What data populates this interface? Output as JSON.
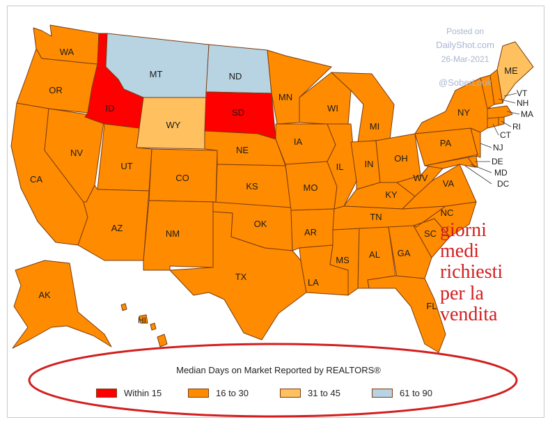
{
  "colors": {
    "within15": "#ff0000",
    "d16to30": "#ff8c00",
    "d31to45": "#ffc060",
    "d61to90": "#b8d4e3",
    "annotation": "#d21e1e"
  },
  "watermark": {
    "posted_on": "Posted on",
    "site": "DailyShot.com",
    "date": "26-Mar-2021",
    "handle": "@SoberLook"
  },
  "legend": {
    "title": "Median Days on Market Reported by REALTORS®",
    "items": [
      {
        "label": "Within 15",
        "color": "#ff0000"
      },
      {
        "label": "16 to 30",
        "color": "#ff8c00"
      },
      {
        "label": "31 to 45",
        "color": "#ffc060"
      },
      {
        "label": "61 to 90",
        "color": "#b8d4e3"
      }
    ]
  },
  "annotation": {
    "lines": [
      "giorni",
      "medi",
      "richiesti",
      "per la",
      "vendita"
    ]
  },
  "states": {
    "WA": {
      "label": "WA",
      "category": "16 to 30"
    },
    "OR": {
      "label": "OR",
      "category": "16 to 30"
    },
    "CA": {
      "label": "CA",
      "category": "16 to 30"
    },
    "NV": {
      "label": "NV",
      "category": "16 to 30"
    },
    "ID": {
      "label": "ID",
      "category": "Within 15"
    },
    "MT": {
      "label": "MT",
      "category": "61 to 90"
    },
    "WY": {
      "label": "WY",
      "category": "31 to 45"
    },
    "UT": {
      "label": "UT",
      "category": "16 to 30"
    },
    "AZ": {
      "label": "AZ",
      "category": "16 to 30"
    },
    "CO": {
      "label": "CO",
      "category": "16 to 30"
    },
    "NM": {
      "label": "NM",
      "category": "16 to 30"
    },
    "ND": {
      "label": "ND",
      "category": "61 to 90"
    },
    "SD": {
      "label": "SD",
      "category": "Within 15"
    },
    "NE": {
      "label": "NE",
      "category": "16 to 30"
    },
    "KS": {
      "label": "KS",
      "category": "16 to 30"
    },
    "OK": {
      "label": "OK",
      "category": "16 to 30"
    },
    "TX": {
      "label": "TX",
      "category": "16 to 30"
    },
    "MN": {
      "label": "MN",
      "category": "16 to 30"
    },
    "IA": {
      "label": "IA",
      "category": "16 to 30"
    },
    "MO": {
      "label": "MO",
      "category": "16 to 30"
    },
    "AR": {
      "label": "AR",
      "category": "16 to 30"
    },
    "LA": {
      "label": "LA",
      "category": "16 to 30"
    },
    "WI": {
      "label": "WI",
      "category": "16 to 30"
    },
    "IL": {
      "label": "IL",
      "category": "16 to 30"
    },
    "MS": {
      "label": "MS",
      "category": "16 to 30"
    },
    "MI": {
      "label": "MI",
      "category": "16 to 30"
    },
    "IN": {
      "label": "IN",
      "category": "16 to 30"
    },
    "KY": {
      "label": "KY",
      "category": "16 to 30"
    },
    "TN": {
      "label": "TN",
      "category": "16 to 30"
    },
    "AL": {
      "label": "AL",
      "category": "16 to 30"
    },
    "GA": {
      "label": "GA",
      "category": "16 to 30"
    },
    "FL": {
      "label": "FL",
      "category": "16 to 30"
    },
    "OH": {
      "label": "OH",
      "category": "16 to 30"
    },
    "WV": {
      "label": "WV",
      "category": "16 to 30"
    },
    "VA": {
      "label": "VA",
      "category": "16 to 30"
    },
    "NC": {
      "label": "NC",
      "category": "16 to 30"
    },
    "SC": {
      "label": "SC",
      "category": "16 to 30"
    },
    "PA": {
      "label": "PA",
      "category": "16 to 30"
    },
    "NY": {
      "label": "NY",
      "category": "16 to 30"
    },
    "ME": {
      "label": "ME",
      "category": "31 to 45"
    },
    "VT": {
      "label": "VT",
      "category": "16 to 30"
    },
    "NH": {
      "label": "NH",
      "category": "16 to 30"
    },
    "MA": {
      "label": "MA",
      "category": "16 to 30"
    },
    "RI": {
      "label": "RI",
      "category": "16 to 30"
    },
    "CT": {
      "label": "CT",
      "category": "16 to 30"
    },
    "NJ": {
      "label": "NJ",
      "category": "16 to 30"
    },
    "DE": {
      "label": "DE",
      "category": "16 to 30"
    },
    "MD": {
      "label": "MD",
      "category": "16 to 30"
    },
    "DC": {
      "label": "DC",
      "category": "16 to 30"
    },
    "AK": {
      "label": "AK",
      "category": "16 to 30"
    },
    "HI": {
      "label": "HI",
      "category": "16 to 30"
    }
  }
}
